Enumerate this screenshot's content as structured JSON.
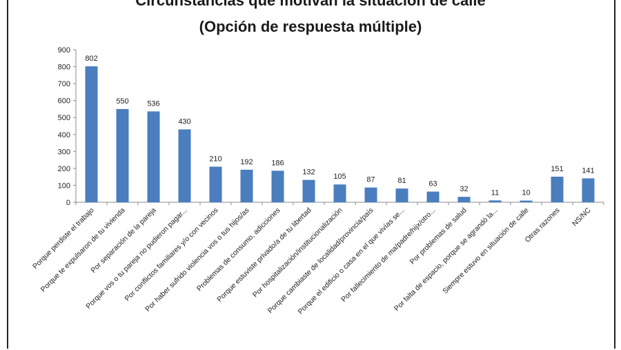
{
  "chart_data": {
    "type": "bar",
    "title": "Circunstancias que motivan la situación de calle",
    "subtitle": "(Opción de respuesta múltiple)",
    "categories": [
      "Porque perdiste el trabajo",
      "Porque te expulsaron de tu vivienda",
      "Por separación de la pareja",
      "Porque vos o tu pareja no pudieron pagar...",
      "Por conflictos familiares y/o con vecinos",
      "Por haber sufrido violencia vos o tus hijos/as",
      "Problemas de consumo, adicciones",
      "Porque estuviste privado/a de tu libertad",
      "Por hospitalización/institucionalización",
      "Porque cambiaste de localidad/provincia/país",
      "Porque el edificio o casa en el que vivías se...",
      "Por fallecimiento de ma/padre/hijx/otro...",
      "Por problemas de salud",
      "Por falta de espacio, porque se agrandó la...",
      "Siempre estuvo en situación de calle",
      "Otras razones",
      "NS/NC"
    ],
    "values": [
      802,
      550,
      536,
      430,
      210,
      192,
      186,
      132,
      105,
      87,
      81,
      63,
      32,
      11,
      10,
      151,
      141
    ],
    "ylim": [
      0,
      900
    ],
    "yticks": [
      0,
      100,
      200,
      300,
      400,
      500,
      600,
      700,
      800,
      900
    ],
    "bar_color": "#4a7ebf",
    "grid": false,
    "legend": "none"
  }
}
